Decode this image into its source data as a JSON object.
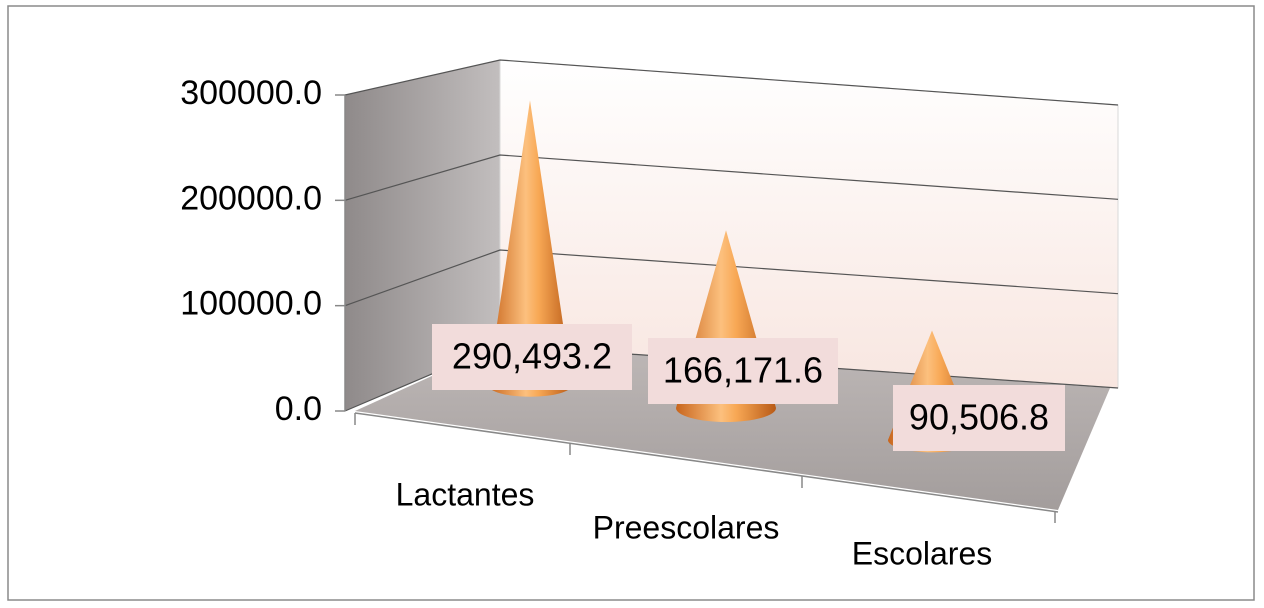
{
  "chart_data": {
    "type": "bar",
    "categories": [
      "Lactantes",
      "Preescolares",
      "Escolares"
    ],
    "values": [
      290493.2,
      166171.6,
      90506.8
    ],
    "value_labels": [
      "290,493.2",
      "166,171.6",
      "90,506.8"
    ],
    "color": "#f39a3c",
    "ylim": [
      0,
      300000
    ],
    "yticks": [
      {
        "value": 0,
        "label": "0.0"
      },
      {
        "value": 100000,
        "label": "100000.0"
      },
      {
        "value": 200000,
        "label": "200000.0"
      },
      {
        "value": 300000,
        "label": "300000.0"
      }
    ],
    "grid": true
  }
}
